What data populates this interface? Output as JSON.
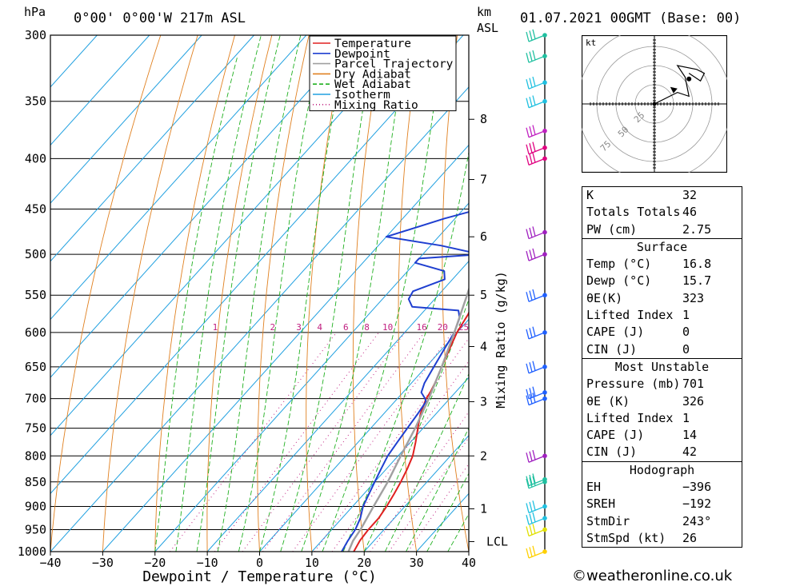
{
  "header": {
    "pressure_unit": "hPa",
    "location": "0°00' 0°00'W 217m ASL",
    "km_label": "km",
    "asl_label": "ASL",
    "datetime": "01.07.2021 00GMT (Base: 00)"
  },
  "chart_data": {
    "type": "line",
    "title": "",
    "xlabel": "Dewpoint / Temperature (°C)",
    "ylabel": "hPa",
    "right_axis_label": "Mixing Ratio (g/kg)",
    "xlim": [
      -40,
      40
    ],
    "ylim": [
      1000,
      300
    ],
    "log_pressure_axis": true,
    "skew": "temperature isotherms skewed to the right with height",
    "x_ticks": [
      -40,
      -30,
      -20,
      -10,
      0,
      10,
      20,
      30,
      40
    ],
    "x_tick_labels": [
      "−40",
      "−30",
      "−20",
      "−10",
      "0",
      "10",
      "20",
      "30",
      "40"
    ],
    "pressure_levels": [
      300,
      350,
      400,
      450,
      500,
      550,
      600,
      650,
      700,
      750,
      800,
      850,
      900,
      950,
      1000
    ],
    "km_ticks": [
      {
        "km": "1",
        "p": 905
      },
      {
        "km": "2",
        "p": 800
      },
      {
        "km": "3",
        "p": 705
      },
      {
        "km": "4",
        "p": 620
      },
      {
        "km": "5",
        "p": 550
      },
      {
        "km": "6",
        "p": 480
      },
      {
        "km": "7",
        "p": 420
      },
      {
        "km": "8",
        "p": 365
      }
    ],
    "lcl": {
      "label": "LCL",
      "p": 977
    },
    "mixing_ratio_labels": [
      {
        "g": "1",
        "x": -8.5
      },
      {
        "g": "2",
        "x": 2.5
      },
      {
        "g": "3",
        "x": 7.5
      },
      {
        "g": "4",
        "x": 11.5
      },
      {
        "g": "6",
        "x": 16.5
      },
      {
        "g": "8",
        "x": 20.5
      },
      {
        "g": "10",
        "x": 24.5
      },
      {
        "g": "16",
        "x": 31
      },
      {
        "g": "20",
        "x": 35
      },
      {
        "g": "25",
        "x": 39
      }
    ],
    "legend": {
      "position": "top",
      "items": [
        {
          "name": "Temperature",
          "color": "#e02020",
          "dash": "solid"
        },
        {
          "name": "Dewpoint",
          "color": "#1f3fd0",
          "dash": "solid"
        },
        {
          "name": "Parcel Trajectory",
          "color": "#a0a0a0",
          "dash": "solid"
        },
        {
          "name": "Dry Adiabat",
          "color": "#e08020",
          "dash": "solid"
        },
        {
          "name": "Wet Adiabat",
          "color": "#20b020",
          "dash": "dash"
        },
        {
          "name": "Isotherm",
          "color": "#20a0e0",
          "dash": "solid"
        },
        {
          "name": "Mixing Ratio",
          "color": "#c02080",
          "dash": "dot"
        }
      ]
    },
    "series": [
      {
        "name": "Temperature",
        "color": "#e02020",
        "points": [
          [
            1000,
            18.0
          ],
          [
            975,
            17.3
          ],
          [
            950,
            17.0
          ],
          [
            925,
            17.0
          ],
          [
            900,
            16.5
          ],
          [
            875,
            15.8
          ],
          [
            850,
            15.0
          ],
          [
            825,
            14.0
          ],
          [
            800,
            12.8
          ],
          [
            775,
            11.0
          ],
          [
            750,
            9.0
          ],
          [
            725,
            7.0
          ],
          [
            700,
            5.5
          ],
          [
            690,
            5.2
          ],
          [
            675,
            4.5
          ],
          [
            650,
            3.0
          ],
          [
            625,
            1.5
          ],
          [
            600,
            0.0
          ],
          [
            575,
            -1.0
          ],
          [
            560,
            -2.0
          ],
          [
            550,
            -3.0
          ],
          [
            530,
            -4.0
          ],
          [
            500,
            -6.0
          ],
          [
            475,
            -7.5
          ],
          [
            450,
            -10.0
          ],
          [
            425,
            -12.5
          ],
          [
            400,
            -15.0
          ],
          [
            375,
            -18.0
          ],
          [
            350,
            -21.0
          ],
          [
            325,
            -26.0
          ],
          [
            300,
            -31.0
          ]
        ]
      },
      {
        "name": "Dewpoint",
        "color": "#1f3fd0",
        "points": [
          [
            1000,
            15.7
          ],
          [
            975,
            15.0
          ],
          [
            950,
            14.5
          ],
          [
            925,
            13.5
          ],
          [
            900,
            12.0
          ],
          [
            875,
            11.0
          ],
          [
            850,
            10.0
          ],
          [
            825,
            9.0
          ],
          [
            800,
            8.0
          ],
          [
            775,
            7.5
          ],
          [
            750,
            7.0
          ],
          [
            725,
            6.5
          ],
          [
            705,
            6.0
          ],
          [
            700,
            5.3
          ],
          [
            690,
            3.5
          ],
          [
            675,
            2.5
          ],
          [
            650,
            1.5
          ],
          [
            625,
            0.5
          ],
          [
            600,
            -0.5
          ],
          [
            580,
            -2.0
          ],
          [
            570,
            -3.5
          ],
          [
            565,
            -13.0
          ],
          [
            555,
            -15.0
          ],
          [
            545,
            -15.5
          ],
          [
            530,
            -11.5
          ],
          [
            520,
            -13.0
          ],
          [
            510,
            -20.0
          ],
          [
            505,
            -20.0
          ],
          [
            500,
            -9.0
          ],
          [
            490,
            -18.0
          ],
          [
            480,
            -30.0
          ],
          [
            460,
            -22.0
          ],
          [
            450,
            -17.0
          ],
          [
            425,
            -19.0
          ],
          [
            400,
            -20.0
          ],
          [
            375,
            -23.0
          ],
          [
            350,
            -25.0
          ],
          [
            325,
            -29.0
          ],
          [
            300,
            -33.0
          ]
        ]
      },
      {
        "name": "Parcel Trajectory",
        "color": "#a0a0a0",
        "points": [
          [
            1000,
            17.0
          ],
          [
            975,
            16.0
          ],
          [
            950,
            15.5
          ],
          [
            900,
            14.0
          ],
          [
            850,
            12.5
          ],
          [
            800,
            10.5
          ],
          [
            750,
            8.5
          ],
          [
            700,
            6.0
          ],
          [
            650,
            3.0
          ],
          [
            600,
            -0.5
          ],
          [
            550,
            -4.5
          ],
          [
            500,
            -9.0
          ],
          [
            450,
            -14.0
          ],
          [
            400,
            -20.0
          ],
          [
            350,
            -27.0
          ],
          [
            300,
            -35.0
          ]
        ]
      }
    ],
    "wind_barbs": [
      {
        "p": 1000,
        "color": "#ffd000"
      },
      {
        "p": 950,
        "color": "#e0e000"
      },
      {
        "p": 925,
        "color": "#20c0e0"
      },
      {
        "p": 900,
        "color": "#20c0e0"
      },
      {
        "p": 850,
        "color": "#20c0a0"
      },
      {
        "p": 845,
        "color": "#20c0a0"
      },
      {
        "p": 800,
        "color": "#a020c0"
      },
      {
        "p": 700,
        "color": "#2060ff"
      },
      {
        "p": 690,
        "color": "#2060ff"
      },
      {
        "p": 650,
        "color": "#2060ff"
      },
      {
        "p": 600,
        "color": "#2060ff"
      },
      {
        "p": 550,
        "color": "#2060ff"
      },
      {
        "p": 500,
        "color": "#a020c0"
      },
      {
        "p": 475,
        "color": "#a020c0"
      },
      {
        "p": 400,
        "color": "#e00080"
      },
      {
        "p": 390,
        "color": "#e00080"
      },
      {
        "p": 375,
        "color": "#c020c0"
      },
      {
        "p": 350,
        "color": "#20c0e0"
      },
      {
        "p": 335,
        "color": "#20c0e0"
      },
      {
        "p": 315,
        "color": "#20c0a0"
      },
      {
        "p": 300,
        "color": "#20c0a0"
      }
    ],
    "hodograph": {
      "unit_label": "kt",
      "ring_labels": [
        "25",
        "50",
        "75"
      ],
      "trace_uv": [
        [
          0,
          0
        ],
        [
          8,
          4
        ],
        [
          12,
          6
        ],
        [
          18,
          4
        ],
        [
          16,
          14
        ],
        [
          12,
          20
        ],
        [
          22,
          18
        ],
        [
          26,
          16
        ],
        [
          24,
          12
        ],
        [
          18,
          16
        ]
      ],
      "storm_motion_uv": [
        12,
        8
      ]
    }
  },
  "indices": {
    "general": [
      {
        "label": "K",
        "value": "32"
      },
      {
        "label": "Totals Totals",
        "value": "46"
      },
      {
        "label": "PW (cm)",
        "value": "2.75"
      }
    ],
    "surface": {
      "title": "Surface",
      "rows": [
        {
          "label": "Temp (°C)",
          "value": "16.8"
        },
        {
          "label": "Dewp (°C)",
          "value": "15.7"
        },
        {
          "label": "θE(K)",
          "value": "323"
        },
        {
          "label": "Lifted Index",
          "value": "1"
        },
        {
          "label": "CAPE (J)",
          "value": "0"
        },
        {
          "label": "CIN (J)",
          "value": "0"
        }
      ]
    },
    "most_unstable": {
      "title": "Most Unstable",
      "rows": [
        {
          "label": "Pressure (mb)",
          "value": "701"
        },
        {
          "label": "θE (K)",
          "value": "326"
        },
        {
          "label": "Lifted Index",
          "value": "1"
        },
        {
          "label": "CAPE (J)",
          "value": "14"
        },
        {
          "label": "CIN (J)",
          "value": "42"
        }
      ]
    },
    "hodograph": {
      "title": "Hodograph",
      "rows": [
        {
          "label": "EH",
          "value": "−396"
        },
        {
          "label": "SREH",
          "value": "−192"
        },
        {
          "label": "StmDir",
          "value": "243°"
        },
        {
          "label": "StmSpd (kt)",
          "value": "26"
        }
      ]
    }
  },
  "footer": "©weatheronline.co.uk"
}
